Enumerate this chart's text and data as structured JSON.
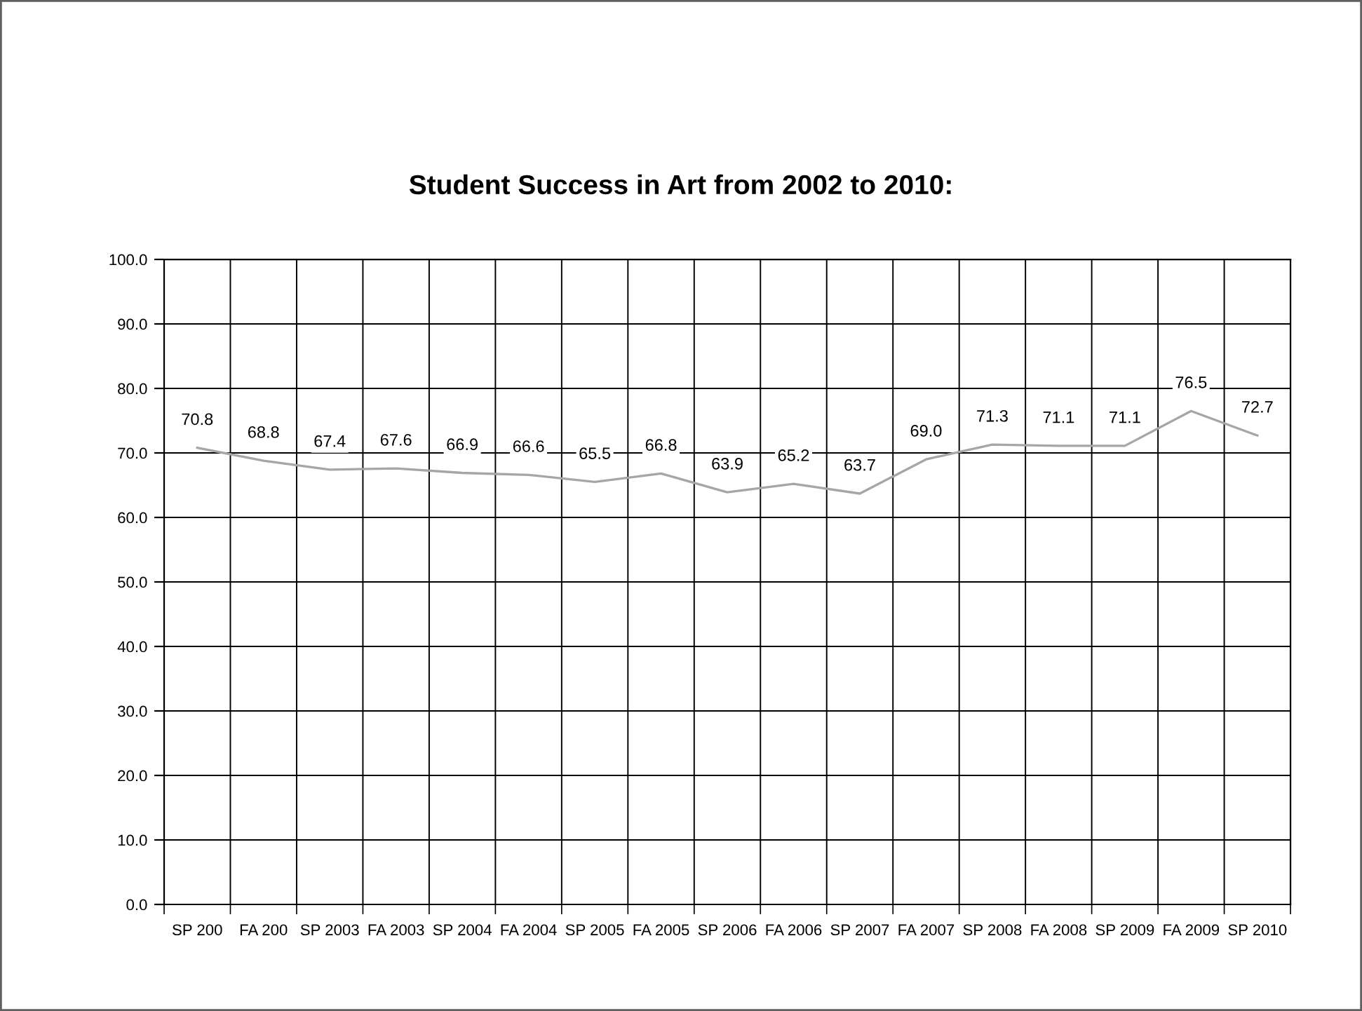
{
  "chart_data": {
    "type": "line",
    "title": "Student Success in Art from 2002 to 2010:",
    "categories": [
      "SP 200",
      "FA 200",
      "SP 2003",
      "FA 2003",
      "SP 2004",
      "FA 2004",
      "SP 2005",
      "FA 2005",
      "SP 2006",
      "FA 2006",
      "SP 2007",
      "FA 2007",
      "SP 2008",
      "FA 2008",
      "SP 2009",
      "FA 2009",
      "SP 2010"
    ],
    "series": [
      {
        "color": "#a6a6a6",
        "values": [
          70.8,
          68.8,
          67.4,
          67.6,
          66.9,
          66.6,
          65.5,
          66.8,
          63.9,
          65.2,
          63.7,
          69.0,
          71.3,
          71.1,
          71.1,
          76.5,
          72.7
        ],
        "value_labels": [
          "70.8",
          "68.8",
          "67.4",
          "67.6",
          "66.9",
          "66.6",
          "65.5",
          "66.8",
          "63.9",
          "65.2",
          "63.7",
          "69.0",
          "71.3",
          "71.1",
          "71.1",
          "76.5",
          "72.7"
        ]
      }
    ],
    "ylim": [
      0,
      100
    ],
    "yticks": [
      {
        "value": 0,
        "label": "0.0"
      },
      {
        "value": 10,
        "label": "10.0"
      },
      {
        "value": 20,
        "label": "20.0"
      },
      {
        "value": 30,
        "label": "30.0"
      },
      {
        "value": 40,
        "label": "40.0"
      },
      {
        "value": 50,
        "label": "50.0"
      },
      {
        "value": 60,
        "label": "60.0"
      },
      {
        "value": 70,
        "label": "70.0"
      },
      {
        "value": 80,
        "label": "80.0"
      },
      {
        "value": 90,
        "label": "90.0"
      },
      {
        "value": 100,
        "label": "100.0"
      }
    ],
    "grid": true,
    "line_style": "solid"
  }
}
